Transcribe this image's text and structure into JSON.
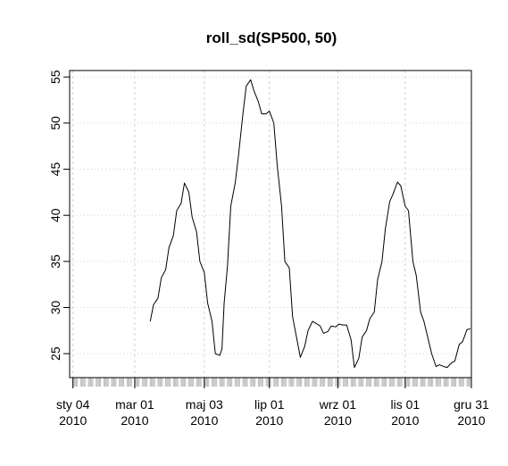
{
  "chart_data": {
    "type": "line",
    "title": "roll_sd(SP500, 50)",
    "xlabel": "",
    "ylabel": "",
    "xlim": [
      "2010-01-01",
      "2010-12-31"
    ],
    "ylim": [
      22.4,
      55.7
    ],
    "grid": true,
    "y_ticks": [
      25,
      30,
      35,
      40,
      45,
      50,
      55
    ],
    "x_ticks": [
      {
        "date": "2010-01-04",
        "line1": "sty 04",
        "line2": "2010"
      },
      {
        "date": "2010-03-01",
        "line1": "mar 01",
        "line2": "2010"
      },
      {
        "date": "2010-05-03",
        "line1": "maj 03",
        "line2": "2010"
      },
      {
        "date": "2010-07-01",
        "line1": "lip 01",
        "line2": "2010"
      },
      {
        "date": "2010-09-01",
        "line1": "wrz 01",
        "line2": "2010"
      },
      {
        "date": "2010-11-01",
        "line1": "lis 01",
        "line2": "2010"
      },
      {
        "date": "2010-12-31",
        "line1": "gru 31",
        "line2": "2010"
      }
    ],
    "series": [
      {
        "color": "#000000",
        "points": [
          [
            "2010-03-15",
            28.5
          ],
          [
            "2010-03-18",
            30.3
          ],
          [
            "2010-03-22",
            31.0
          ],
          [
            "2010-03-25",
            33.2
          ],
          [
            "2010-03-29",
            34.1
          ],
          [
            "2010-04-01",
            36.5
          ],
          [
            "2010-04-05",
            37.8
          ],
          [
            "2010-04-08",
            40.5
          ],
          [
            "2010-04-12",
            41.3
          ],
          [
            "2010-04-15",
            43.5
          ],
          [
            "2010-04-19",
            42.5
          ],
          [
            "2010-04-22",
            39.8
          ],
          [
            "2010-04-26",
            38.2
          ],
          [
            "2010-04-29",
            35.0
          ],
          [
            "2010-05-03",
            33.8
          ],
          [
            "2010-05-06",
            30.5
          ],
          [
            "2010-05-10",
            28.5
          ],
          [
            "2010-05-13",
            25.0
          ],
          [
            "2010-05-17",
            24.8
          ],
          [
            "2010-05-19",
            25.5
          ],
          [
            "2010-05-21",
            30.5
          ],
          [
            "2010-05-24",
            34.5
          ],
          [
            "2010-05-27",
            41.0
          ],
          [
            "2010-05-31",
            43.5
          ],
          [
            "2010-06-03",
            46.5
          ],
          [
            "2010-06-07",
            51.0
          ],
          [
            "2010-06-10",
            54.0
          ],
          [
            "2010-06-14",
            54.7
          ],
          [
            "2010-06-17",
            53.5
          ],
          [
            "2010-06-21",
            52.3
          ],
          [
            "2010-06-24",
            51.0
          ],
          [
            "2010-06-28",
            51.0
          ],
          [
            "2010-07-01",
            51.3
          ],
          [
            "2010-07-05",
            50.0
          ],
          [
            "2010-07-08",
            45.5
          ],
          [
            "2010-07-12",
            41.0
          ],
          [
            "2010-07-15",
            35.0
          ],
          [
            "2010-07-19",
            34.3
          ],
          [
            "2010-07-22",
            29.0
          ],
          [
            "2010-07-26",
            26.5
          ],
          [
            "2010-07-29",
            24.6
          ],
          [
            "2010-08-02",
            25.8
          ],
          [
            "2010-08-05",
            27.5
          ],
          [
            "2010-08-09",
            28.5
          ],
          [
            "2010-08-12",
            28.3
          ],
          [
            "2010-08-16",
            28.0
          ],
          [
            "2010-08-19",
            27.2
          ],
          [
            "2010-08-23",
            27.4
          ],
          [
            "2010-08-26",
            28.0
          ],
          [
            "2010-08-30",
            27.9
          ],
          [
            "2010-09-02",
            28.2
          ],
          [
            "2010-09-06",
            28.1
          ],
          [
            "2010-09-09",
            28.1
          ],
          [
            "2010-09-13",
            26.5
          ],
          [
            "2010-09-16",
            23.5
          ],
          [
            "2010-09-20",
            24.5
          ],
          [
            "2010-09-23",
            26.8
          ],
          [
            "2010-09-27",
            27.5
          ],
          [
            "2010-09-30",
            28.8
          ],
          [
            "2010-10-04",
            29.5
          ],
          [
            "2010-10-07",
            33.0
          ],
          [
            "2010-10-11",
            35.0
          ],
          [
            "2010-10-14",
            38.5
          ],
          [
            "2010-10-18",
            41.5
          ],
          [
            "2010-10-21",
            42.3
          ],
          [
            "2010-10-25",
            43.6
          ],
          [
            "2010-10-28",
            43.2
          ],
          [
            "2010-11-01",
            41.0
          ],
          [
            "2010-11-04",
            40.5
          ],
          [
            "2010-11-08",
            35.0
          ],
          [
            "2010-11-11",
            33.5
          ],
          [
            "2010-11-15",
            29.5
          ],
          [
            "2010-11-18",
            28.5
          ],
          [
            "2010-11-22",
            26.5
          ],
          [
            "2010-11-25",
            25.0
          ],
          [
            "2010-11-29",
            23.6
          ],
          [
            "2010-12-02",
            23.8
          ],
          [
            "2010-12-06",
            23.6
          ],
          [
            "2010-12-09",
            23.5
          ],
          [
            "2010-12-13",
            24.0
          ],
          [
            "2010-12-16",
            24.2
          ],
          [
            "2010-12-20",
            26.0
          ],
          [
            "2010-12-23",
            26.3
          ],
          [
            "2010-12-27",
            27.6
          ],
          [
            "2010-12-30",
            27.7
          ]
        ]
      }
    ]
  }
}
